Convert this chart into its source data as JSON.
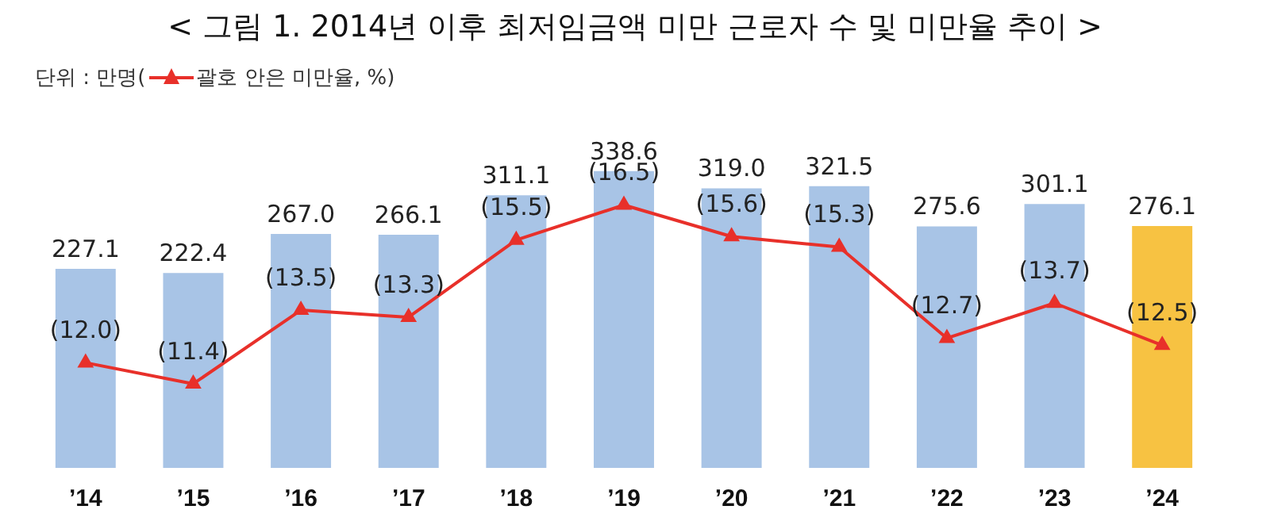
{
  "chart_data": {
    "type": "bar",
    "title": "< 그림 1. 2014년 이후 최저임금액 미만 근로자 수 및 미만율 추이 >",
    "categories": [
      "’14",
      "’15",
      "’16",
      "’17",
      "’18",
      "’19",
      "’20",
      "’21",
      "’22",
      "’23",
      "’24"
    ],
    "annotations": [
      "단위 : 만명("
    ],
    "legend": "top left",
    "series": [
      {
        "colors": [
          "#a8c4e6",
          "#a8c4e6",
          "#a8c4e6",
          "#a8c4e6",
          "#a8c4e6",
          "#a8c4e6",
          "#a8c4e6",
          "#a8c4e6",
          "#a8c4e6",
          "#a8c4e6",
          "#f7c242"
        ],
        "values": [
          227.1,
          222.4,
          267.0,
          266.1,
          311.1,
          338.6,
          319.0,
          321.5,
          275.6,
          301.1,
          276.1
        ],
        "value_labels": [
          "227.1",
          "222.4",
          "267.0",
          "266.1",
          "311.1",
          "338.6",
          "319.0",
          "321.5",
          "275.6",
          "301.1",
          "276.1"
        ]
      },
      {
        "type": "line",
        "name": "괄호 안은 미만율, %)",
        "color": "#e8302a",
        "axis": "y2",
        "marker": "triangle",
        "values": [
          12.0,
          11.4,
          13.5,
          13.3,
          15.5,
          16.5,
          15.6,
          15.3,
          12.7,
          13.7,
          12.5
        ],
        "value_labels": [
          "(12.0)",
          "(11.4)",
          "(13.5)",
          "(13.3)",
          "(15.5)",
          "(16.5)",
          "(15.6)",
          "(15.3)",
          "(12.7)",
          "(13.7)",
          "(12.5)"
        ]
      }
    ]
  }
}
